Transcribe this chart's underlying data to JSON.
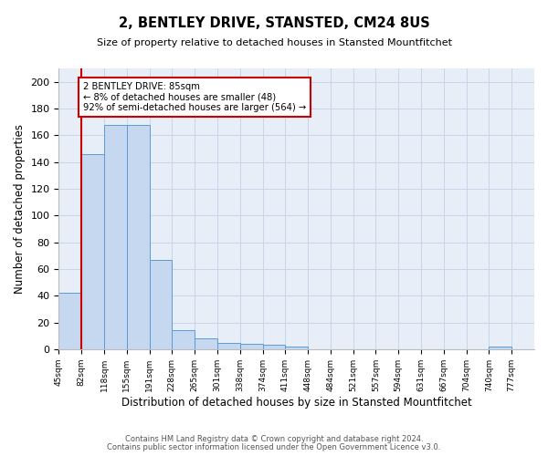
{
  "title": "2, BENTLEY DRIVE, STANSTED, CM24 8US",
  "subtitle": "Size of property relative to detached houses in Stansted Mountfitchet",
  "xlabel": "Distribution of detached houses by size in Stansted Mountfitchet",
  "ylabel": "Number of detached properties",
  "footnote1": "Contains HM Land Registry data © Crown copyright and database right 2024.",
  "footnote2": "Contains public sector information licensed under the Open Government Licence v3.0.",
  "bin_labels": [
    "45sqm",
    "82sqm",
    "118sqm",
    "155sqm",
    "191sqm",
    "228sqm",
    "265sqm",
    "301sqm",
    "338sqm",
    "374sqm",
    "411sqm",
    "448sqm",
    "484sqm",
    "521sqm",
    "557sqm",
    "594sqm",
    "631sqm",
    "667sqm",
    "704sqm",
    "740sqm",
    "777sqm"
  ],
  "bar_heights": [
    42,
    146,
    168,
    168,
    67,
    14,
    8,
    5,
    4,
    3,
    2,
    0,
    0,
    0,
    0,
    0,
    0,
    0,
    0,
    2,
    0
  ],
  "bar_color": "#c5d8f0",
  "bar_edge_color": "#5b9bd5",
  "marker_bin_index": 1,
  "marker_label_short": "2 BENTLEY DRIVE: 85sqm",
  "marker_line_color": "#cc0000",
  "annotation_text": "2 BENTLEY DRIVE: 85sqm\n← 8% of detached houses are smaller (48)\n92% of semi-detached houses are larger (564) →",
  "annotation_box_color": "#ffffff",
  "annotation_box_edge": "#cc0000",
  "ylim": [
    0,
    210
  ],
  "yticks": [
    0,
    20,
    40,
    60,
    80,
    100,
    120,
    140,
    160,
    180,
    200
  ],
  "grid_color": "#c8d4e8",
  "background_color": "#e8eef8"
}
